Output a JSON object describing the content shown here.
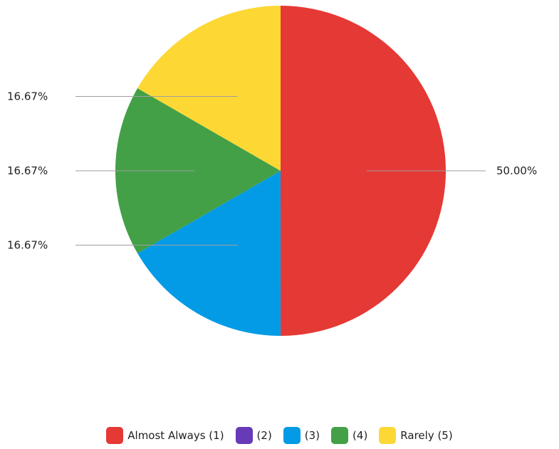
{
  "chart_data": {
    "type": "pie",
    "start": "12 o'clock",
    "direction": "clockwise",
    "slices": [
      {
        "label": "Almost Always (1)",
        "value": 50.0,
        "display": "50.00%",
        "color": "#E53935"
      },
      {
        "label": "(2)",
        "value": 0,
        "display": "",
        "color": "#673AB7"
      },
      {
        "label": "(3)",
        "value": 16.67,
        "display": "16.67%",
        "color": "#039BE5"
      },
      {
        "label": "(4)",
        "value": 16.67,
        "display": "16.67%",
        "color": "#43A047"
      },
      {
        "label": "Rarely (5)",
        "value": 16.67,
        "display": "16.67%",
        "color": "#FDD835"
      }
    ],
    "legend_position": "bottom"
  },
  "legend": [
    {
      "label": "Almost Always (1)",
      "color": "#E53935"
    },
    {
      "label": "(2)",
      "color": "#673AB7"
    },
    {
      "label": "(3)",
      "color": "#039BE5"
    },
    {
      "label": "(4)",
      "color": "#43A047"
    },
    {
      "label": "Rarely (5)",
      "color": "#FDD835"
    }
  ]
}
